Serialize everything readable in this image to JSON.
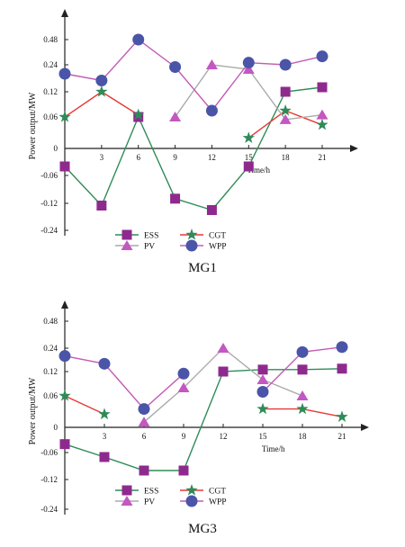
{
  "chart_data": [
    {
      "type": "line",
      "title": "MG1",
      "xlabel": "Time/h",
      "ylabel": "Power output/MW",
      "x_ticks": [
        3,
        6,
        9,
        12,
        15,
        18,
        21
      ],
      "y_ticks": [
        -0.24,
        -0.12,
        -0.06,
        0,
        0.06,
        0.12,
        0.24,
        0.48
      ],
      "x_tick_labels": [
        "3",
        "6",
        "9",
        "12",
        "15",
        "18",
        "21"
      ],
      "y_tick_labels": [
        "-0.24",
        "-0.12",
        "-0.06",
        "0",
        "0.06",
        "0.12",
        "0.24",
        "0.48"
      ],
      "origin_label": "0",
      "legend_position": "bottom",
      "grid": false,
      "series": [
        {
          "name": "ESS",
          "color": "#2e8b57",
          "marker": "square",
          "marker_color": "#8e2a8e",
          "segments": [
            [
              [
                0,
                -0.04
              ],
              [
                3,
                -0.13
              ],
              [
                6,
                0.06
              ],
              [
                9,
                -0.11
              ],
              [
                12,
                -0.15
              ],
              [
                15,
                -0.04
              ],
              [
                18,
                0.12
              ],
              [
                21,
                0.14
              ]
            ]
          ]
        },
        {
          "name": "CGT",
          "color": "#e53935",
          "marker": "star",
          "marker_color": "#2e8b57",
          "segments": [
            [
              [
                0,
                0.06
              ],
              [
                3,
                0.12
              ],
              [
                6,
                0.065
              ]
            ],
            [
              [
                15,
                0.02
              ],
              [
                18,
                0.075
              ],
              [
                21,
                0.045
              ]
            ]
          ]
        },
        {
          "name": "PV",
          "color": "#aaaaaa",
          "marker": "triangle",
          "marker_color": "#c357c3",
          "segments": [
            [
              [
                9,
                0.06
              ],
              [
                12,
                0.24
              ],
              [
                15,
                0.22
              ],
              [
                18,
                0.055
              ],
              [
                21,
                0.065
              ]
            ]
          ]
        },
        {
          "name": "WPP",
          "color": "#c45bb5",
          "marker": "circle",
          "marker_color": "#4a55a8",
          "segments": [
            [
              [
                0,
                0.2
              ],
              [
                3,
                0.17
              ],
              [
                6,
                0.48
              ],
              [
                9,
                0.23
              ],
              [
                12,
                0.075
              ],
              [
                15,
                0.26
              ],
              [
                18,
                0.24
              ],
              [
                21,
                0.32
              ]
            ]
          ]
        }
      ]
    },
    {
      "type": "line",
      "title": "MG3",
      "xlabel": "Time/h",
      "ylabel": "Power output/MW",
      "x_ticks": [
        3,
        6,
        9,
        12,
        15,
        18,
        21
      ],
      "y_ticks": [
        -0.24,
        -0.12,
        -0.06,
        0,
        0.06,
        0.12,
        0.24,
        0.48
      ],
      "x_tick_labels": [
        "3",
        "6",
        "9",
        "12",
        "15",
        "18",
        "21"
      ],
      "y_tick_labels": [
        "-0.24",
        "-0.12",
        "-0.06",
        "0",
        "0.06",
        "0.12",
        "0.24",
        "0.48"
      ],
      "origin_label": "0",
      "legend_position": "bottom",
      "grid": false,
      "series": [
        {
          "name": "ESS",
          "color": "#2e8b57",
          "marker": "square",
          "marker_color": "#8e2a8e",
          "segments": [
            [
              [
                0,
                -0.04
              ],
              [
                3,
                -0.07
              ],
              [
                6,
                -0.1
              ],
              [
                9,
                -0.1
              ],
              [
                12,
                0.12
              ],
              [
                15,
                0.13
              ],
              [
                18,
                0.13
              ],
              [
                21,
                0.135
              ]
            ]
          ]
        },
        {
          "name": "CGT",
          "color": "#e53935",
          "marker": "star",
          "marker_color": "#2e8b57",
          "segments": [
            [
              [
                0,
                0.06
              ],
              [
                3,
                0.025
              ]
            ],
            [
              [
                15,
                0.035
              ],
              [
                18,
                0.035
              ],
              [
                21,
                0.02
              ]
            ]
          ]
        },
        {
          "name": "PV",
          "color": "#aaaaaa",
          "marker": "triangle",
          "marker_color": "#c357c3",
          "segments": [
            [
              [
                6,
                0.01
              ],
              [
                9,
                0.08
              ],
              [
                12,
                0.24
              ],
              [
                15,
                0.1
              ],
              [
                18,
                0.06
              ]
            ]
          ]
        },
        {
          "name": "WPP",
          "color": "#c45bb5",
          "marker": "circle",
          "marker_color": "#4a55a8",
          "segments": [
            [
              [
                0,
                0.2
              ],
              [
                3,
                0.16
              ],
              [
                6,
                0.035
              ],
              [
                9,
                0.115
              ]
            ],
            [
              [
                15,
                0.07
              ],
              [
                18,
                0.22
              ],
              [
                21,
                0.25
              ]
            ]
          ]
        }
      ]
    }
  ]
}
